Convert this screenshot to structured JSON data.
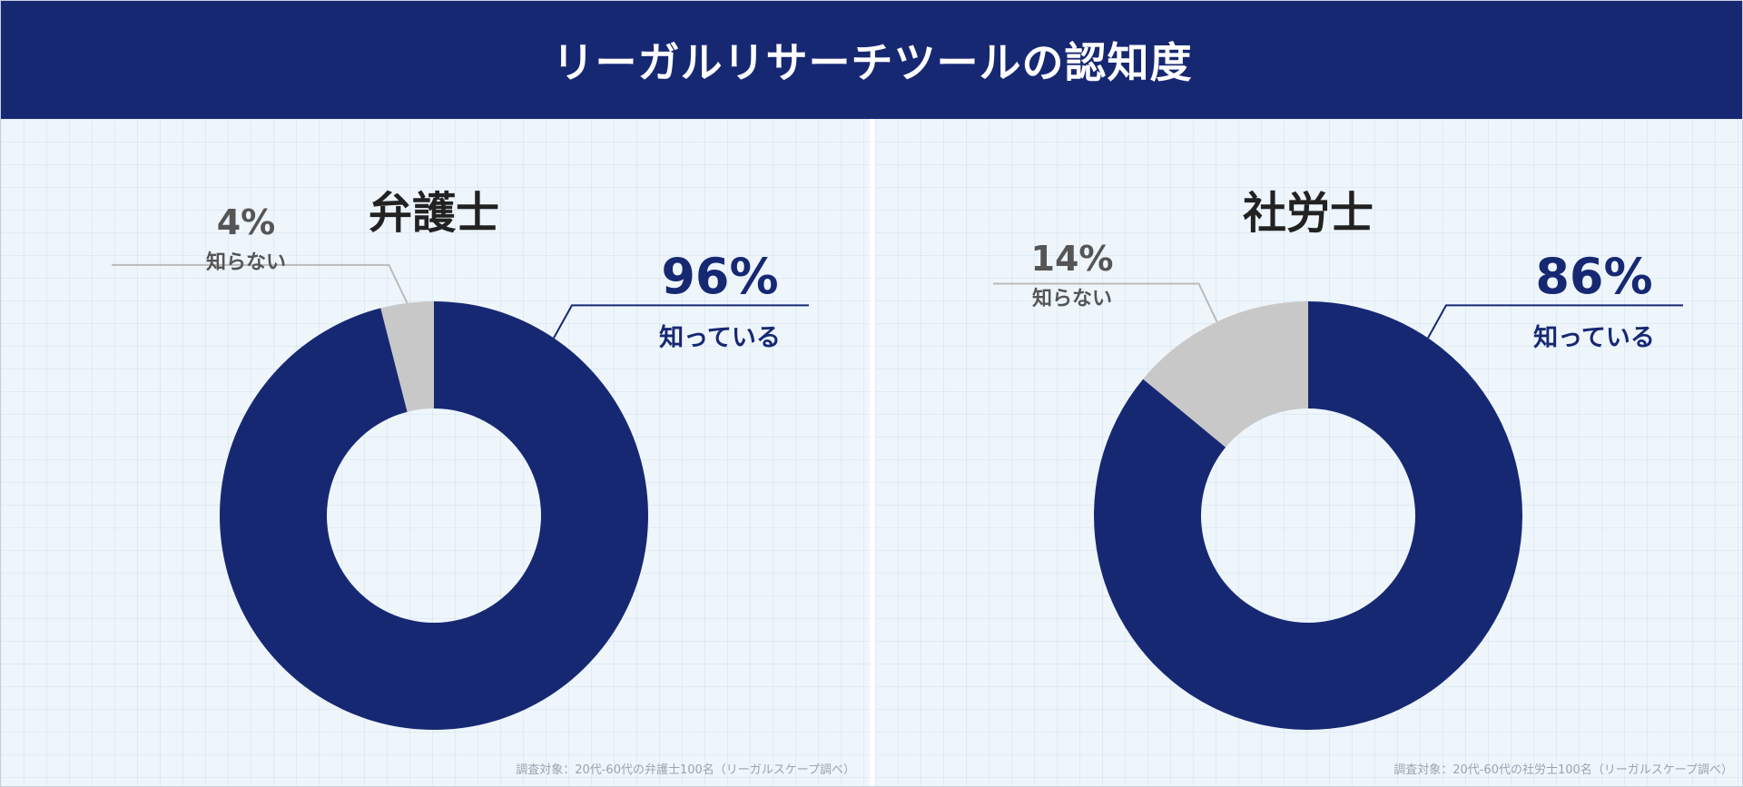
{
  "header": {
    "title": "リーガルリサーチツールの認知度"
  },
  "colors": {
    "known": "#172873",
    "unknown": "#c8c8c8",
    "header_bg": "#172873",
    "unknown_text": "#555555"
  },
  "chart_data": [
    {
      "type": "pie",
      "title": "弁護士",
      "slices": [
        {
          "label": "知っている",
          "value": 96,
          "value_label": "96%"
        },
        {
          "label": "知らない",
          "value": 4,
          "value_label": "4%"
        }
      ],
      "note": "調査対象：20代-60代の弁護士100名（リーガルスケープ調べ）"
    },
    {
      "type": "pie",
      "title": "社労士",
      "slices": [
        {
          "label": "知っている",
          "value": 86,
          "value_label": "86%"
        },
        {
          "label": "知らない",
          "value": 14,
          "value_label": "14%"
        }
      ],
      "note": "調査対象：20代-60代の社労士100名（リーガルスケープ調べ）"
    }
  ]
}
